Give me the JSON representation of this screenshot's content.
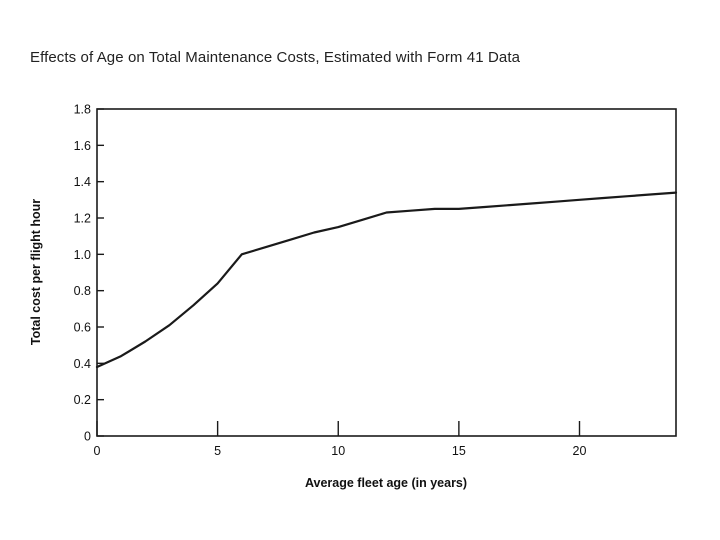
{
  "chart_data": {
    "type": "line",
    "title": "Effects of Age on Total Maintenance Costs, Estimated with Form 41 Data",
    "xlabel": "Average fleet age (in years)",
    "ylabel": "Total cost per flight hour",
    "xlim": [
      0,
      24
    ],
    "ylim": [
      0,
      1.8
    ],
    "x_ticks": [
      0,
      5,
      10,
      15,
      20
    ],
    "x_tick_labels": [
      "0",
      "5",
      "10",
      "15",
      "20"
    ],
    "y_ticks": [
      0,
      0.2,
      0.4,
      0.6,
      0.8,
      1.0,
      1.2,
      1.4,
      1.6,
      1.8
    ],
    "y_tick_labels": [
      "0",
      "0.2",
      "0.4",
      "0.6",
      "0.8",
      "1.0",
      "1.2",
      "1.4",
      "1.6",
      "1.8"
    ],
    "grid": false,
    "series": [
      {
        "x": [
          0,
          1,
          2,
          3,
          4,
          5,
          6,
          7,
          8,
          9,
          10,
          11,
          12,
          13,
          14,
          15,
          16,
          17,
          18,
          19,
          20,
          21,
          22,
          23,
          24
        ],
        "y": [
          0.38,
          0.44,
          0.52,
          0.61,
          0.72,
          0.84,
          1.0,
          1.04,
          1.08,
          1.12,
          1.15,
          1.19,
          1.23,
          1.24,
          1.25,
          1.25,
          1.26,
          1.27,
          1.28,
          1.29,
          1.3,
          1.31,
          1.32,
          1.33,
          1.34
        ]
      }
    ],
    "line_color": "#1a1a1a"
  }
}
